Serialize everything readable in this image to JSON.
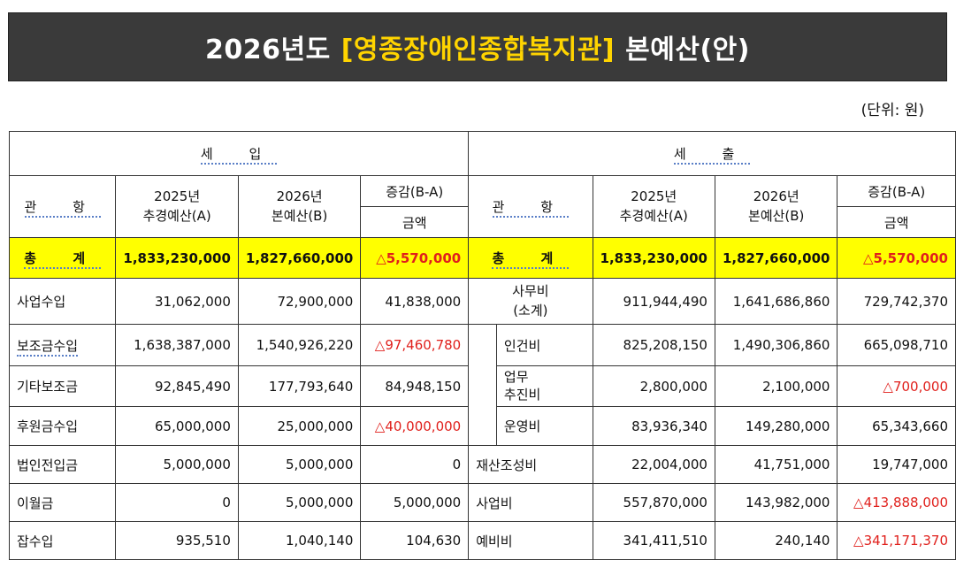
{
  "title": {
    "prefix": "2026년도",
    "highlight": "[영종장애인종합복지관]",
    "suffix": "본예산(안)"
  },
  "unit": "(단위: 원)",
  "header": {
    "income": "세 입",
    "expense": "세 출",
    "category": "관 항",
    "col2025_line1": "2025년",
    "col2025_line2": "추경예산(A)",
    "col2026_line1": "2026년",
    "col2026_line2": "본예산(B)",
    "diff": "증감(B-A)",
    "amount": "금액"
  },
  "total": {
    "label": "총 계",
    "income": {
      "a": "1,833,230,000",
      "b": "1,827,660,000",
      "diff": "△5,570,000"
    },
    "expense": {
      "a": "1,833,230,000",
      "b": "1,827,660,000",
      "diff": "△5,570,000"
    }
  },
  "income_rows": [
    {
      "name": "사업수입",
      "a": "31,062,000",
      "b": "72,900,000",
      "diff": "41,838,000",
      "negative": false
    },
    {
      "name": "보조금수입",
      "a": "1,638,387,000",
      "b": "1,540,926,220",
      "diff": "△97,460,780",
      "negative": true
    },
    {
      "name": "기타보조금",
      "a": "92,845,490",
      "b": "177,793,640",
      "diff": "84,948,150",
      "negative": false
    },
    {
      "name": "후원금수입",
      "a": "65,000,000",
      "b": "25,000,000",
      "diff": "△40,000,000",
      "negative": true
    },
    {
      "name": "법인전입금",
      "a": "5,000,000",
      "b": "5,000,000",
      "diff": "0",
      "negative": false
    },
    {
      "name": "이월금",
      "a": "0",
      "b": "5,000,000",
      "diff": "5,000,000",
      "negative": false
    },
    {
      "name": "잡수입",
      "a": "935,510",
      "b": "1,040,140",
      "diff": "104,630",
      "negative": false
    }
  ],
  "expense_rows": [
    {
      "name": "사무비",
      "name2": "(소계)",
      "a": "911,944,490",
      "b": "1,641,686,860",
      "diff": "729,742,370",
      "negative": false
    },
    {
      "name": "인건비",
      "a": "825,208,150",
      "b": "1,490,306,860",
      "diff": "665,098,710",
      "negative": false
    },
    {
      "name": "업무",
      "name2": "추진비",
      "a": "2,800,000",
      "b": "2,100,000",
      "diff": "△700,000",
      "negative": true
    },
    {
      "name": "운영비",
      "a": "83,936,340",
      "b": "149,280,000",
      "diff": "65,343,660",
      "negative": false
    },
    {
      "name": "재산조성비",
      "a": "22,004,000",
      "b": "41,751,000",
      "diff": "19,747,000",
      "negative": false
    },
    {
      "name": "사업비",
      "a": "557,870,000",
      "b": "143,982,000",
      "diff": "△413,888,000",
      "negative": true
    },
    {
      "name": "예비비",
      "a": "341,411,510",
      "b": "240,140",
      "diff": "△341,171,370",
      "negative": true
    }
  ],
  "colors": {
    "title_bg": "#3a3a3a",
    "title_highlight": "#ffd400",
    "total_bg": "#ffff00",
    "negative": "#e0201c"
  }
}
